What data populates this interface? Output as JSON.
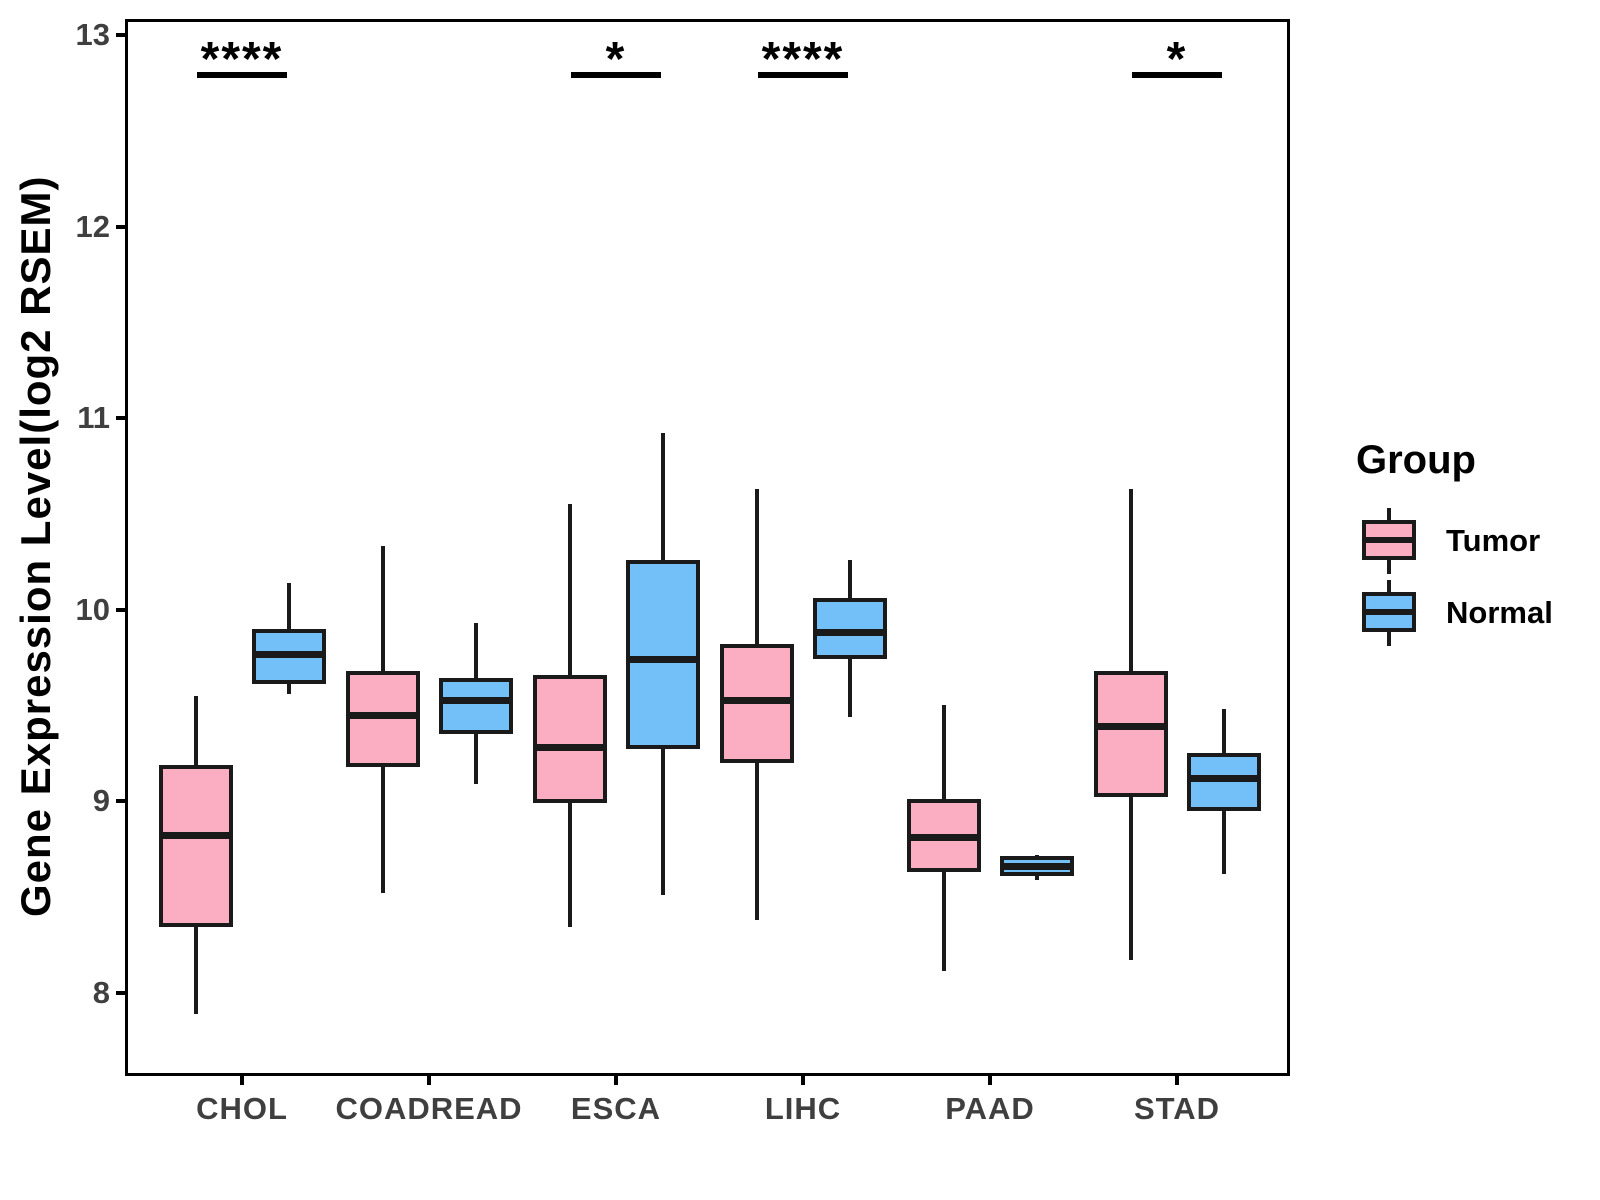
{
  "chart_data": {
    "type": "boxplot",
    "title": "",
    "xlabel": "",
    "ylabel": "Gene Expression Level(log2 RSEM)",
    "legend_title": "Group",
    "legend_position": "right",
    "grid": false,
    "y_ticks": [
      8,
      9,
      10,
      11,
      12,
      13
    ],
    "ylim": [
      7.58,
      13.07
    ],
    "categories": [
      "CHOL",
      "COADREAD",
      "ESCA",
      "LIHC",
      "PAAD",
      "STAD"
    ],
    "series": [
      {
        "name": "Tumor",
        "color": "#FBAEC2",
        "boxes": [
          {
            "category": "CHOL",
            "low": 7.89,
            "q1": 8.35,
            "median": 8.82,
            "q3": 9.18,
            "high": 9.55
          },
          {
            "category": "COADREAD",
            "low": 8.52,
            "q1": 9.19,
            "median": 9.45,
            "q3": 9.67,
            "high": 10.33
          },
          {
            "category": "ESCA",
            "low": 8.34,
            "q1": 9.0,
            "median": 9.28,
            "q3": 9.65,
            "high": 10.55
          },
          {
            "category": "LIHC",
            "low": 8.38,
            "q1": 9.21,
            "median": 9.53,
            "q3": 9.81,
            "high": 10.63
          },
          {
            "category": "PAAD",
            "low": 8.11,
            "q1": 8.64,
            "median": 8.81,
            "q3": 9.0,
            "high": 9.5
          },
          {
            "category": "STAD",
            "low": 8.17,
            "q1": 9.03,
            "median": 9.39,
            "q3": 9.67,
            "high": 10.63
          }
        ]
      },
      {
        "name": "Normal",
        "color": "#73BFF8",
        "boxes": [
          {
            "category": "CHOL",
            "low": 9.56,
            "q1": 9.62,
            "median": 9.77,
            "q3": 9.89,
            "high": 10.14
          },
          {
            "category": "COADREAD",
            "low": 9.09,
            "q1": 9.36,
            "median": 9.53,
            "q3": 9.63,
            "high": 9.93
          },
          {
            "category": "ESCA",
            "low": 8.51,
            "q1": 9.28,
            "median": 9.74,
            "q3": 10.25,
            "high": 10.92
          },
          {
            "category": "LIHC",
            "low": 9.44,
            "q1": 9.75,
            "median": 9.88,
            "q3": 10.05,
            "high": 10.26
          },
          {
            "category": "PAAD",
            "low": 8.59,
            "q1": 8.62,
            "median": 8.66,
            "q3": 8.7,
            "high": 8.72
          },
          {
            "category": "STAD",
            "low": 8.62,
            "q1": 8.96,
            "median": 9.12,
            "q3": 9.24,
            "high": 9.48
          }
        ]
      }
    ],
    "significance": [
      {
        "category": "CHOL",
        "label": "****"
      },
      {
        "category": "ESCA",
        "label": "*"
      },
      {
        "category": "LIHC",
        "label": "****"
      },
      {
        "category": "STAD",
        "label": "*"
      }
    ],
    "style": {
      "box_border_color": "#1A1A1A",
      "axis_color": "#000000",
      "tick_label_color": "#3F3F3F",
      "background": "#FFFFFF"
    }
  }
}
